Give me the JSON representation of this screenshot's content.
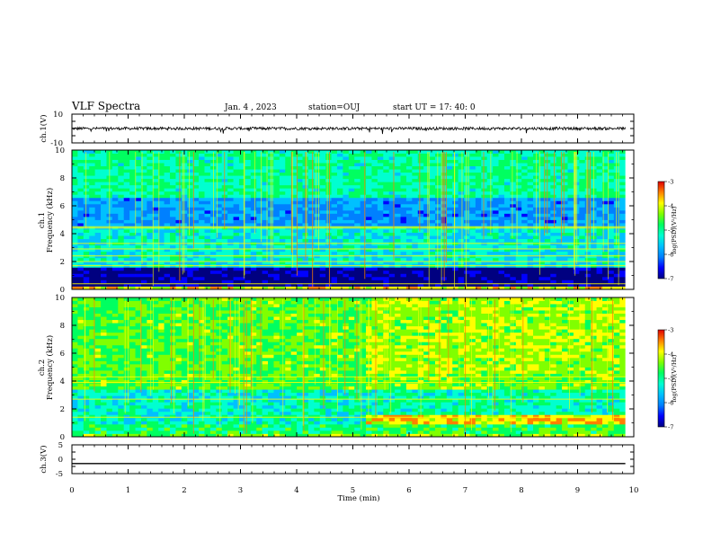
{
  "header": {
    "title": "VLF Spectra",
    "date": "Jan. 4 , 2023",
    "station": "station=OUJ",
    "start": "start  UT =   17: 40: 0"
  },
  "colors": {
    "colormap": [
      "#000080",
      "#0000ff",
      "#0080ff",
      "#00c0ff",
      "#00ffd0",
      "#00ff60",
      "#80ff00",
      "#ffff00",
      "#ff8000",
      "#e00000",
      "#ffffff"
    ],
    "trace": "#000000"
  },
  "chart_data": [
    {
      "type": "line",
      "panel": "ch1-waveform",
      "ylabel": "ch.1(V)",
      "ylim": [
        -10,
        10
      ],
      "yticks": [
        "10",
        "-10"
      ],
      "x_range_min": [
        0,
        9.85
      ],
      "description_level": "noise band centred near 0 V, amplitude about ±1 V, occasional spikes to about -3 V",
      "center_v": 0,
      "amplitude_v": 1
    },
    {
      "type": "heatmap",
      "panel": "ch1-spectrogram",
      "ylabel": "ch.1\nFrequency (kHz)",
      "ylim": [
        0,
        10
      ],
      "yticks": [
        "0",
        "2",
        "4",
        "6",
        "8",
        "10"
      ],
      "x_range_min": [
        0,
        9.85
      ],
      "colorbar": {
        "label": "log(PSD)(V²/Hz)",
        "range": [
          -7,
          -3
        ],
        "ticks": [
          "-3",
          "-4",
          "-5",
          "-6",
          "-7"
        ]
      },
      "background_levels": [
        {
          "f_khz": [
            0,
            0.3
          ],
          "value": -3.6
        },
        {
          "f_khz": [
            0.3,
            1.5
          ],
          "value": -6.8
        },
        {
          "f_khz": [
            1.5,
            2.0
          ],
          "value": -5.2
        },
        {
          "f_khz": [
            2.0,
            4.5
          ],
          "value": -5.1
        },
        {
          "f_khz": [
            4.5,
            6.5
          ],
          "value": -5.7
        },
        {
          "f_khz": [
            6.5,
            10
          ],
          "value": -4.8
        }
      ],
      "lines_khz": [
        0.4,
        1.7,
        2.0,
        2.4,
        2.9,
        3.3,
        4.4,
        4.5
      ]
    },
    {
      "type": "heatmap",
      "panel": "ch2-spectrogram",
      "ylabel": "ch.2\nFrequency (kHz)",
      "ylim": [
        0,
        10
      ],
      "yticks": [
        "0",
        "2",
        "4",
        "6",
        "8",
        "10"
      ],
      "x_range_min": [
        0,
        9.85
      ],
      "colorbar": {
        "label": "log(PSD)(V²/Hz)",
        "range": [
          -7,
          -3
        ],
        "ticks": [
          "-3",
          "-4",
          "-5",
          "-6",
          "-7"
        ]
      },
      "background_levels": [
        {
          "f_khz": [
            0,
            0.2
          ],
          "value": -4.2
        },
        {
          "f_khz": [
            0.2,
            1.0
          ],
          "value": -4.6
        },
        {
          "f_khz": [
            1.0,
            3.5
          ],
          "value": -5.0
        },
        {
          "f_khz": [
            3.5,
            10
          ],
          "value": -4.3
        }
      ],
      "change_after_min": 5.15,
      "lines_khz": [
        1.4,
        2.7,
        3.9,
        4.3
      ]
    },
    {
      "type": "line",
      "panel": "ch3-waveform",
      "ylabel": "ch.3(V)",
      "ylim": [
        -5,
        5
      ],
      "yticks": [
        "5",
        "0",
        "-5"
      ],
      "x_range_min": [
        0,
        9.85
      ],
      "constant_v": -1.5
    }
  ],
  "xaxis": {
    "label": "Time (min)",
    "range": [
      0,
      10
    ],
    "ticks": [
      "0",
      "1",
      "2",
      "3",
      "4",
      "5",
      "6",
      "7",
      "8",
      "9",
      "10"
    ]
  }
}
